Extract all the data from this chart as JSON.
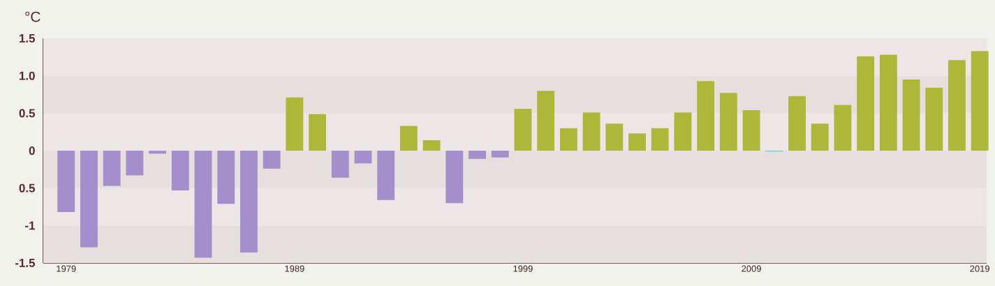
{
  "chart_data": {
    "type": "bar",
    "ylabel": "°C",
    "x": [
      1979,
      1980,
      1981,
      1982,
      1983,
      1984,
      1985,
      1986,
      1987,
      1988,
      1989,
      1990,
      1991,
      1992,
      1993,
      1994,
      1995,
      1996,
      1997,
      1998,
      1999,
      2000,
      2001,
      2002,
      2003,
      2004,
      2005,
      2006,
      2007,
      2008,
      2009,
      2010,
      2011,
      2012,
      2013,
      2014,
      2015,
      2016,
      2017,
      2018,
      2019
    ],
    "values": [
      -0.82,
      -1.29,
      -0.47,
      -0.33,
      -0.04,
      -0.53,
      -1.43,
      -0.71,
      -1.36,
      -0.24,
      0.71,
      0.49,
      -0.36,
      -0.17,
      -0.66,
      0.33,
      0.14,
      -0.7,
      -0.11,
      -0.09,
      0.56,
      0.8,
      0.3,
      0.51,
      0.36,
      0.23,
      0.3,
      0.51,
      0.93,
      0.77,
      0.54,
      -0.01,
      0.73,
      0.36,
      0.61,
      1.26,
      1.28,
      0.95,
      0.84,
      1.21,
      1.33
    ],
    "colors": [
      "#a48ecb",
      "#a48ecb",
      "#a48ecb",
      "#a48ecb",
      "#a48ecb",
      "#a48ecb",
      "#a48ecb",
      "#a48ecb",
      "#a48ecb",
      "#a48ecb",
      "#adb83a",
      "#adb83a",
      "#a48ecb",
      "#a48ecb",
      "#a48ecb",
      "#adb83a",
      "#adb83a",
      "#a48ecb",
      "#a48ecb",
      "#a48ecb",
      "#adb83a",
      "#adb83a",
      "#adb83a",
      "#adb83a",
      "#adb83a",
      "#adb83a",
      "#adb83a",
      "#adb83a",
      "#adb83a",
      "#adb83a",
      "#adb83a",
      "#5bc8c8",
      "#adb83a",
      "#adb83a",
      "#adb83a",
      "#adb83a",
      "#adb83a",
      "#adb83a",
      "#adb83a",
      "#adb83a",
      "#adb83a"
    ],
    "xlim": [
      1978,
      2019.3
    ],
    "xticks": [
      1979,
      1989,
      1999,
      2009,
      2019
    ],
    "ylim": [
      -1.5,
      1.5
    ],
    "yticks": [
      -1.5,
      -1,
      {
        "value": -0.5,
        "label": "0.5"
      },
      0,
      0.5,
      {
        "value": 1.0,
        "label": "1.0"
      },
      1.5
    ]
  }
}
